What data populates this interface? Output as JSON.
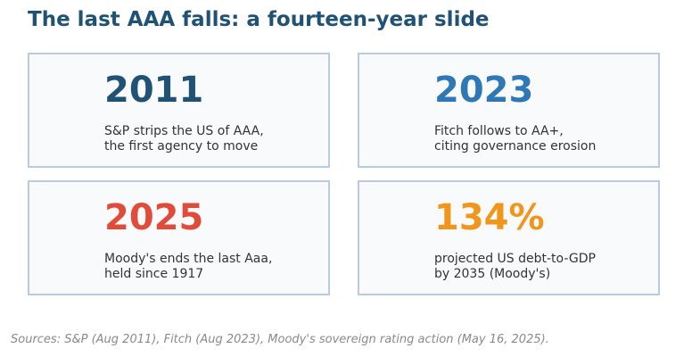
{
  "title": "The last AAA falls: a fourteen-year slide",
  "colors": {
    "title": "#1f5275",
    "card_border": "#b9cbe0",
    "card_background": "#f9fafc"
  },
  "cards": [
    {
      "value": "2011",
      "color": "#1f5275",
      "line1": "S&P strips the US of AAA,",
      "line2": "the first agency to move"
    },
    {
      "value": "2023",
      "color": "#2f78b8",
      "line1": "Fitch follows to AA+,",
      "line2": "citing governance erosion"
    },
    {
      "value": "2025",
      "color": "#e04b3a",
      "line1": "Moody's ends the last Aaa,",
      "line2": "held since 1917"
    },
    {
      "value": "134%",
      "color": "#f0961c",
      "line1": "projected US debt-to-GDP",
      "line2": "by 2035 (Moody's)"
    }
  ],
  "footer": "Sources: S&P (Aug 2011), Fitch (Aug 2023), Moody's sovereign rating action (May 16, 2025)."
}
